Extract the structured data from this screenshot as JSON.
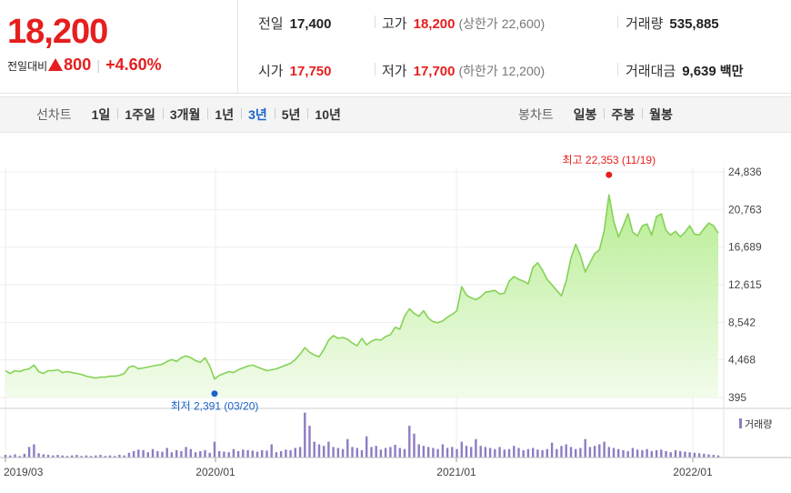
{
  "quote": {
    "price": "18,200",
    "change_label": "전일대비",
    "change_value": "800",
    "change_pct": "+4.60%",
    "stats": [
      {
        "label": "전일",
        "value": "17,400",
        "tone": "black"
      },
      {
        "label": "고가",
        "value": "18,200",
        "tone": "red",
        "extra": "(상한가 22,600)"
      },
      {
        "label": "거래량",
        "value": "535,885",
        "tone": "black"
      },
      {
        "label": "시가",
        "value": "17,750",
        "tone": "red"
      },
      {
        "label": "저가",
        "value": "17,700",
        "tone": "red",
        "extra": "(하한가 12,200)"
      },
      {
        "label": "거래대금",
        "value": "9,639",
        "tone": "black",
        "extra": "백만"
      }
    ]
  },
  "line_chart_tabs": {
    "label": "선차트",
    "items": [
      "1일",
      "1주일",
      "3개월",
      "1년",
      "3년",
      "5년",
      "10년"
    ],
    "active": "3년"
  },
  "candle_chart_tabs": {
    "label": "봉차트",
    "items": [
      "일봉",
      "주봉",
      "월봉"
    ]
  },
  "colors": {
    "up": "#e61e1e",
    "down": "#1a63c9",
    "line": "#84d255",
    "volume": "#8e7cc3"
  },
  "chart_data": {
    "type": "area",
    "x_tick_labels": [
      "2019/03",
      "2020/01",
      "2021/01",
      "2022/01"
    ],
    "y_tick_labels": [
      "24,836",
      "20,763",
      "16,689",
      "12,615",
      "8,542",
      "4,468",
      "395"
    ],
    "y_ticks": [
      24836,
      20763,
      16689,
      12615,
      8542,
      4468,
      395
    ],
    "ylim": [
      395,
      24836
    ],
    "grid": true,
    "annotations": [
      {
        "kind": "high",
        "text": "최고 22,353 (11/19)",
        "value": 22353
      },
      {
        "kind": "low",
        "text": "최저 2,391 (03/20)",
        "value": 2391
      }
    ],
    "series": [
      {
        "values": [
          3300,
          3000,
          3300,
          3200,
          3400,
          3500,
          3900,
          3200,
          3000,
          3300,
          3300,
          3400,
          3100,
          3200,
          3100,
          3000,
          2900,
          2700,
          2600,
          2500,
          2600,
          2600,
          2700,
          2700,
          2800,
          3000,
          3700,
          3800,
          3500,
          3600,
          3700,
          3800,
          3900,
          4000,
          4300,
          4500,
          4300,
          4700,
          4900,
          4700,
          4400,
          4200,
          4700,
          3800,
          2391,
          2800,
          3000,
          3200,
          3100,
          3400,
          3600,
          3800,
          3900,
          3700,
          3500,
          3300,
          3400,
          3500,
          3700,
          3900,
          4100,
          4500,
          5100,
          5800,
          5300,
          5000,
          4800,
          5600,
          6600,
          7100,
          6800,
          6900,
          6700,
          6300,
          6000,
          6800,
          6100,
          6500,
          6700,
          6600,
          7000,
          7200,
          8000,
          7800,
          9200,
          10000,
          9500,
          9200,
          9800,
          9000,
          8600,
          8500,
          8700,
          9100,
          9400,
          9800,
          12400,
          11500,
          11200,
          11000,
          11300,
          11800,
          11900,
          12000,
          11600,
          11700,
          13000,
          13500,
          13200,
          13000,
          12700,
          14500,
          15000,
          14200,
          13200,
          12600,
          12000,
          11400,
          13000,
          15500,
          17000,
          15800,
          14000,
          15000,
          16000,
          16400,
          18500,
          22353,
          19500,
          17800,
          19000,
          20300,
          18300,
          17900,
          19000,
          19200,
          18000,
          20000,
          20300,
          18500,
          18000,
          18400,
          17800,
          18300,
          19000,
          18100,
          18000,
          18700,
          19300,
          19000,
          18200
        ]
      },
      {
        "name": "거래량",
        "values": [
          5,
          4,
          6,
          3,
          7,
          20,
          25,
          8,
          6,
          5,
          4,
          5,
          4,
          3,
          4,
          5,
          3,
          4,
          3,
          4,
          5,
          3,
          4,
          3,
          5,
          4,
          9,
          12,
          15,
          14,
          10,
          16,
          12,
          11,
          18,
          10,
          14,
          12,
          20,
          16,
          10,
          12,
          14,
          9,
          30,
          12,
          11,
          10,
          16,
          12,
          15,
          14,
          13,
          11,
          14,
          13,
          25,
          10,
          12,
          15,
          14,
          18,
          20,
          85,
          60,
          30,
          25,
          22,
          30,
          20,
          18,
          16,
          35,
          20,
          18,
          14,
          40,
          20,
          22,
          15,
          18,
          20,
          24,
          18,
          16,
          60,
          45,
          25,
          22,
          20,
          18,
          16,
          25,
          18,
          20,
          16,
          30,
          22,
          20,
          35,
          22,
          20,
          18,
          16,
          20,
          15,
          16,
          22,
          18,
          14,
          16,
          18,
          15,
          14,
          16,
          28,
          16,
          22,
          25,
          20,
          16,
          18,
          35,
          20,
          22,
          25,
          30,
          20,
          18,
          16,
          14,
          12,
          18,
          15,
          14,
          16,
          12,
          14,
          15,
          12,
          10,
          14,
          12,
          11,
          10,
          9,
          8,
          7,
          6,
          5,
          4
        ]
      }
    ]
  }
}
